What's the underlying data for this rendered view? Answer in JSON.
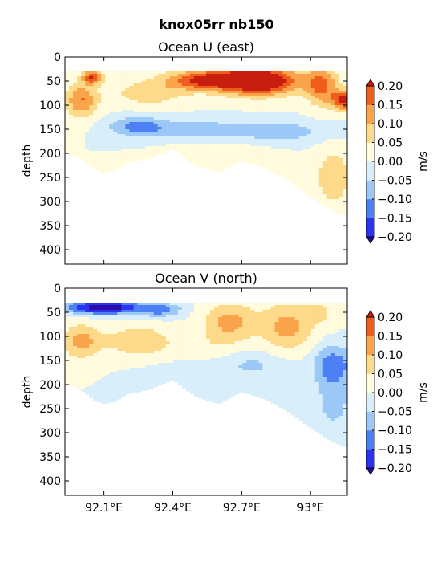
{
  "figure": {
    "suptitle": "knox05rr nb150"
  },
  "colors": {
    "levels": [
      -0.2,
      -0.15,
      -0.1,
      -0.05,
      0.0,
      0.05,
      0.1,
      0.15,
      0.2
    ],
    "bands": [
      "#2b33f0",
      "#4d7ff5",
      "#9cc8f7",
      "#d8eefb",
      "#fffbdc",
      "#fdd98a",
      "#f9a44a",
      "#ef5d1d"
    ],
    "under": "#2a0ea8",
    "over": "#c81e0f"
  },
  "chart_data": [
    {
      "type": "heatmap",
      "title": "Ocean U (east)",
      "xlabel": "",
      "ylabel": "depth",
      "xlim": [
        91.93,
        93.16
      ],
      "ylim": [
        430,
        0
      ],
      "xticks": [
        92.1,
        92.4,
        92.7,
        93.0
      ],
      "xtick_labels": [],
      "yticks": [
        0,
        50,
        100,
        150,
        200,
        250,
        300,
        350,
        400
      ],
      "ytick_labels": [
        "0",
        "50",
        "100",
        "150",
        "200",
        "250",
        "300",
        "350",
        "400"
      ],
      "colorbar": {
        "label": "m/s",
        "ticks": [
          "0.20",
          "0.15",
          "0.10",
          "0.05",
          "0.00",
          "−0.05",
          "−0.10",
          "−0.15",
          "−0.20"
        ]
      },
      "features": [
        {
          "x": 92.78,
          "y": 50,
          "v": 0.3,
          "sx": 0.12,
          "sy": 20
        },
        {
          "x": 92.55,
          "y": 48,
          "v": 0.22,
          "sx": 0.12,
          "sy": 14
        },
        {
          "x": 92.05,
          "y": 42,
          "v": 0.2,
          "sx": 0.03,
          "sy": 10
        },
        {
          "x": 93.15,
          "y": 90,
          "v": 0.22,
          "sx": 0.04,
          "sy": 14
        },
        {
          "x": 93.05,
          "y": 60,
          "v": 0.16,
          "sx": 0.05,
          "sy": 28
        },
        {
          "x": 92.0,
          "y": 90,
          "v": 0.15,
          "sx": 0.05,
          "sy": 25
        },
        {
          "x": 92.3,
          "y": 75,
          "v": 0.08,
          "sx": 0.12,
          "sy": 20
        },
        {
          "x": 92.25,
          "y": 145,
          "v": -0.12,
          "sx": 0.09,
          "sy": 15
        },
        {
          "x": 92.5,
          "y": 150,
          "v": -0.08,
          "sx": 0.12,
          "sy": 15
        },
        {
          "x": 92.85,
          "y": 155,
          "v": -0.09,
          "sx": 0.15,
          "sy": 15
        },
        {
          "x": 93.1,
          "y": 250,
          "v": 0.1,
          "sx": 0.05,
          "sy": 40
        },
        {
          "x": 92.6,
          "y": 210,
          "v": 0.04,
          "sx": 0.15,
          "sy": 25
        }
      ],
      "extent": [
        [
          91.95,
          200
        ],
        [
          92.0,
          210
        ],
        [
          92.05,
          230
        ],
        [
          92.1,
          240
        ],
        [
          92.15,
          235
        ],
        [
          92.2,
          220
        ],
        [
          92.3,
          210
        ],
        [
          92.4,
          190
        ],
        [
          92.5,
          225
        ],
        [
          92.6,
          240
        ],
        [
          92.7,
          215
        ],
        [
          92.8,
          230
        ],
        [
          92.9,
          255
        ],
        [
          93.0,
          290
        ],
        [
          93.05,
          305
        ],
        [
          93.1,
          320
        ],
        [
          93.16,
          330
        ]
      ]
    },
    {
      "type": "heatmap",
      "title": "Ocean V (north)",
      "xlabel": "",
      "ylabel": "depth",
      "xlim": [
        91.93,
        93.16
      ],
      "ylim": [
        430,
        0
      ],
      "xticks": [
        92.1,
        92.4,
        92.7,
        93.0
      ],
      "xtick_labels": [
        "92.1°E",
        "92.4°E",
        "92.7°E",
        "93°E"
      ],
      "yticks": [
        0,
        50,
        100,
        150,
        200,
        250,
        300,
        350,
        400
      ],
      "ytick_labels": [
        "0",
        "50",
        "100",
        "150",
        "200",
        "250",
        "300",
        "350",
        "400"
      ],
      "colorbar": {
        "label": "m/s",
        "ticks": [
          "0.20",
          "0.15",
          "0.10",
          "0.05",
          "0.00",
          "−0.05",
          "−0.10",
          "−0.15",
          "−0.20"
        ]
      },
      "features": [
        {
          "x": 92.1,
          "y": 40,
          "v": -0.25,
          "sx": 0.12,
          "sy": 10
        },
        {
          "x": 92.35,
          "y": 45,
          "v": -0.12,
          "sx": 0.06,
          "sy": 10
        },
        {
          "x": 92.0,
          "y": 110,
          "v": 0.12,
          "sx": 0.06,
          "sy": 25
        },
        {
          "x": 92.25,
          "y": 110,
          "v": 0.1,
          "sx": 0.1,
          "sy": 22
        },
        {
          "x": 92.65,
          "y": 70,
          "v": 0.12,
          "sx": 0.08,
          "sy": 28
        },
        {
          "x": 92.9,
          "y": 80,
          "v": 0.12,
          "sx": 0.08,
          "sy": 35
        },
        {
          "x": 93.1,
          "y": 160,
          "v": -0.14,
          "sx": 0.06,
          "sy": 28
        },
        {
          "x": 92.75,
          "y": 160,
          "v": -0.06,
          "sx": 0.1,
          "sy": 20
        },
        {
          "x": 92.45,
          "y": 200,
          "v": -0.05,
          "sx": 0.12,
          "sy": 25
        },
        {
          "x": 92.55,
          "y": 120,
          "v": 0.03,
          "sx": 0.1,
          "sy": 20
        },
        {
          "x": 93.1,
          "y": 240,
          "v": -0.07,
          "sx": 0.06,
          "sy": 40
        },
        {
          "x": 93.05,
          "y": 50,
          "v": 0.05,
          "sx": 0.05,
          "sy": 20
        }
      ],
      "extent": [
        [
          91.95,
          200
        ],
        [
          92.0,
          210
        ],
        [
          92.05,
          230
        ],
        [
          92.1,
          240
        ],
        [
          92.15,
          235
        ],
        [
          92.2,
          220
        ],
        [
          92.3,
          210
        ],
        [
          92.4,
          190
        ],
        [
          92.5,
          225
        ],
        [
          92.6,
          240
        ],
        [
          92.7,
          215
        ],
        [
          92.8,
          230
        ],
        [
          92.9,
          255
        ],
        [
          93.0,
          290
        ],
        [
          93.05,
          305
        ],
        [
          93.1,
          320
        ],
        [
          93.16,
          330
        ]
      ]
    }
  ]
}
